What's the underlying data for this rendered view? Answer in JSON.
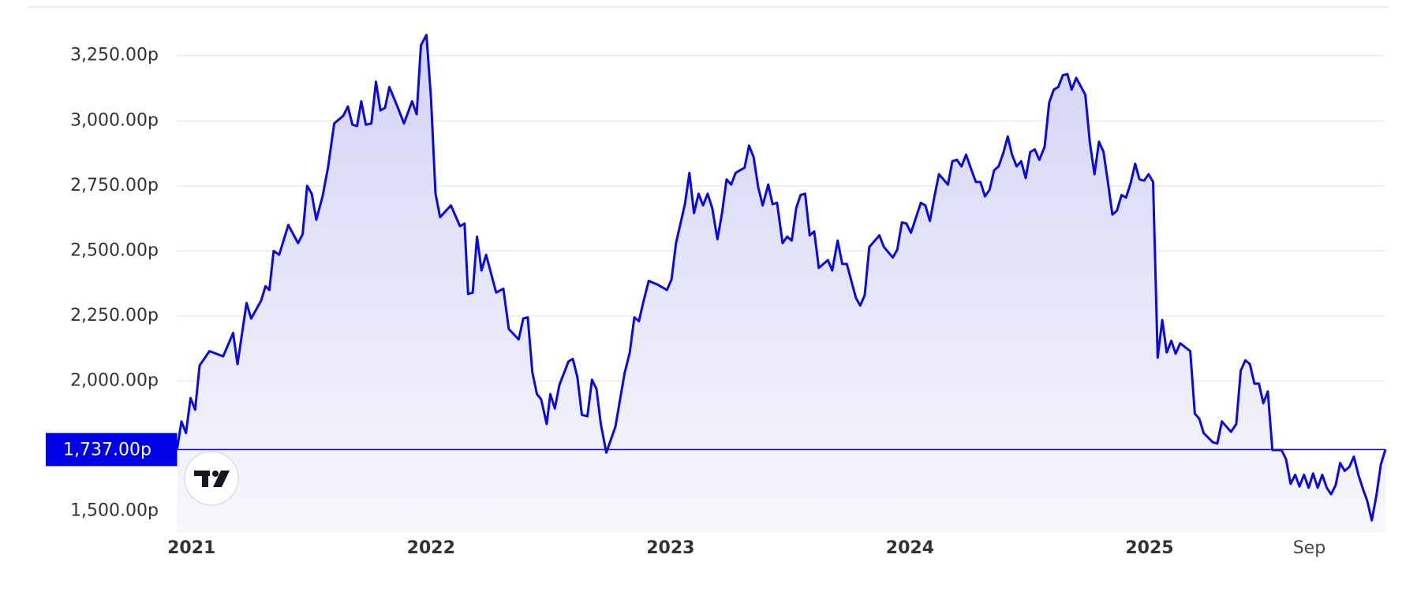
{
  "chart_data": {
    "type": "line",
    "x": [
      2020.94,
      2020.958,
      2020.977,
      2020.996,
      2021.015,
      2021.034,
      2021.075,
      2021.132,
      2021.174,
      2021.192,
      2021.23,
      2021.249,
      2021.291,
      2021.309,
      2021.325,
      2021.343,
      2021.366,
      2021.404,
      2021.445,
      2021.464,
      2021.483,
      2021.502,
      2021.521,
      2021.547,
      2021.57,
      2021.596,
      2021.634,
      2021.653,
      2021.672,
      2021.691,
      2021.709,
      2021.728,
      2021.751,
      2021.77,
      2021.789,
      2021.808,
      2021.826,
      2021.864,
      2021.887,
      2021.921,
      2021.94,
      2021.958,
      2021.981,
      2022.0,
      2022.019,
      2022.038,
      2022.083,
      2022.121,
      2022.14,
      2022.155,
      2022.174,
      2022.192,
      2022.211,
      2022.23,
      2022.272,
      2022.302,
      2022.325,
      2022.366,
      2022.385,
      2022.404,
      2022.423,
      2022.442,
      2022.46,
      2022.483,
      2022.498,
      2022.517,
      2022.536,
      2022.574,
      2022.592,
      2022.611,
      2022.63,
      2022.653,
      2022.672,
      2022.691,
      2022.709,
      2022.732,
      2022.77,
      2022.808,
      2022.83,
      2022.849,
      2022.868,
      2022.887,
      2022.909,
      2022.947,
      2022.985,
      2023.004,
      2023.023,
      2023.06,
      2023.079,
      2023.098,
      2023.117,
      2023.136,
      2023.155,
      2023.174,
      2023.196,
      2023.215,
      2023.234,
      2023.253,
      2023.272,
      2023.309,
      2023.328,
      2023.347,
      2023.366,
      2023.385,
      2023.408,
      2023.426,
      2023.445,
      2023.468,
      2023.487,
      2023.506,
      2023.525,
      2023.543,
      2023.562,
      2023.581,
      2023.6,
      2023.619,
      2023.657,
      2023.675,
      2023.698,
      2023.717,
      2023.736,
      2023.774,
      2023.792,
      2023.811,
      2023.83,
      2023.872,
      2023.891,
      2023.928,
      2023.947,
      2023.966,
      2023.985,
      2024.004,
      2024.045,
      2024.064,
      2024.083,
      2024.102,
      2024.121,
      2024.158,
      2024.177,
      2024.196,
      2024.215,
      2024.234,
      2024.257,
      2024.275,
      2024.294,
      2024.313,
      2024.332,
      2024.351,
      2024.37,
      2024.389,
      2024.408,
      2024.426,
      2024.445,
      2024.464,
      2024.483,
      2024.502,
      2024.521,
      2024.54,
      2024.562,
      2024.581,
      2024.6,
      2024.619,
      2024.638,
      2024.657,
      2024.675,
      2024.694,
      2024.732,
      2024.751,
      2024.77,
      2024.789,
      2024.808,
      2024.826,
      2024.845,
      2024.864,
      2024.883,
      2024.902,
      2024.921,
      2024.94,
      2024.958,
      2024.977,
      2024.996,
      2025.015,
      2025.034,
      2025.053,
      2025.072,
      2025.091,
      2025.109,
      2025.128,
      2025.17,
      2025.189,
      2025.208,
      2025.226,
      2025.264,
      2025.283,
      2025.302,
      2025.34,
      2025.362,
      2025.381,
      2025.4,
      2025.419,
      2025.438,
      2025.457,
      2025.475,
      2025.494,
      2025.513,
      2025.551,
      2025.57,
      2025.589,
      2025.608,
      2025.626,
      2025.645,
      2025.664,
      2025.683,
      2025.702,
      2025.721,
      2025.74,
      2025.758,
      2025.777,
      2025.796,
      2025.815,
      2025.834,
      2025.853,
      2025.872,
      2025.891,
      2025.909,
      2025.928,
      2025.947,
      2025.966,
      2025.985
    ],
    "series": [
      {
        "color": "#0a0ae0",
        "values": [
          1740,
          1845,
          1800,
          1935,
          1890,
          2060,
          2115,
          2095,
          2185,
          2065,
          2300,
          2240,
          2310,
          2365,
          2350,
          2500,
          2485,
          2600,
          2530,
          2565,
          2750,
          2720,
          2620,
          2710,
          2820,
          2990,
          3020,
          3055,
          2985,
          2980,
          3075,
          2985,
          2990,
          3150,
          3040,
          3050,
          3130,
          3045,
          2990,
          3075,
          3025,
          3290,
          3330,
          3085,
          2720,
          2630,
          2675,
          2595,
          2605,
          2335,
          2340,
          2555,
          2425,
          2485,
          2340,
          2355,
          2200,
          2160,
          2240,
          2245,
          2035,
          1950,
          1930,
          1835,
          1950,
          1895,
          1985,
          2075,
          2085,
          2015,
          1870,
          1865,
          2005,
          1970,
          1835,
          1725,
          1825,
          2030,
          2110,
          2245,
          2230,
          2305,
          2385,
          2370,
          2350,
          2390,
          2530,
          2680,
          2800,
          2645,
          2720,
          2675,
          2720,
          2665,
          2545,
          2645,
          2775,
          2755,
          2800,
          2820,
          2905,
          2860,
          2745,
          2675,
          2755,
          2680,
          2685,
          2530,
          2555,
          2540,
          2665,
          2715,
          2720,
          2560,
          2575,
          2435,
          2465,
          2425,
          2540,
          2450,
          2450,
          2320,
          2290,
          2330,
          2515,
          2560,
          2515,
          2475,
          2505,
          2610,
          2605,
          2570,
          2685,
          2675,
          2615,
          2710,
          2795,
          2755,
          2845,
          2850,
          2825,
          2870,
          2810,
          2765,
          2765,
          2710,
          2735,
          2810,
          2825,
          2875,
          2940,
          2870,
          2825,
          2845,
          2780,
          2880,
          2890,
          2850,
          2900,
          3070,
          3120,
          3130,
          3175,
          3180,
          3120,
          3165,
          3100,
          2915,
          2795,
          2920,
          2880,
          2765,
          2640,
          2655,
          2715,
          2705,
          2760,
          2835,
          2775,
          2770,
          2795,
          2765,
          2090,
          2235,
          2110,
          2155,
          2105,
          2145,
          2115,
          1875,
          1855,
          1800,
          1765,
          1760,
          1845,
          1805,
          1835,
          2040,
          2080,
          2065,
          1990,
          1990,
          1915,
          1960,
          1735,
          1735,
          1700,
          1605,
          1640,
          1595,
          1640,
          1590,
          1645,
          1590,
          1640,
          1590,
          1565,
          1600,
          1685,
          1655,
          1670,
          1710,
          1640,
          1585,
          1540,
          1465,
          1560,
          1680,
          1737
        ]
      }
    ],
    "current_price": {
      "value": 1737,
      "label": "1,737.00p"
    },
    "xlim": [
      2020.94,
      2025.985
    ],
    "xticks": [
      {
        "value": 2021,
        "label": "2021"
      },
      {
        "value": 2022,
        "label": "2022"
      },
      {
        "value": 2023,
        "label": "2023"
      },
      {
        "value": 2024,
        "label": "2024"
      },
      {
        "value": 2025,
        "label": "2025"
      },
      {
        "value": 2025.667,
        "label": "Sep"
      }
    ],
    "ylim": [
      1417,
      3437
    ],
    "yticks": [
      {
        "value": 1500,
        "label": "1,500.00p"
      },
      {
        "value": 2000,
        "label": "2,000.00p"
      },
      {
        "value": 2250,
        "label": "2,250.00p"
      },
      {
        "value": 2500,
        "label": "2,500.00p"
      },
      {
        "value": 2750,
        "label": "2,750.00p"
      },
      {
        "value": 3000,
        "label": "3,000.00p"
      },
      {
        "value": 3250,
        "label": "3,250.00p"
      }
    ],
    "grid": true
  }
}
